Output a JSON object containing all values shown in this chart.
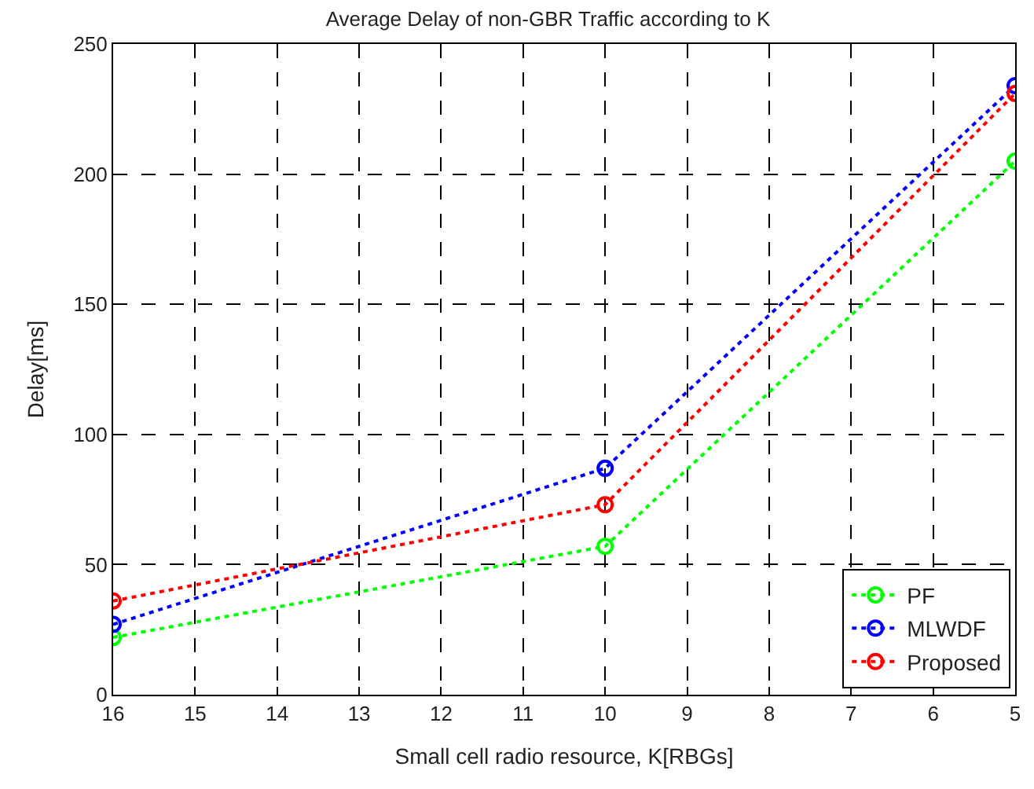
{
  "chart_data": {
    "type": "line",
    "title": "Average Delay of non-GBR Traffic according to K",
    "xlabel": "Small cell radio resource, K[RBGs]",
    "ylabel": "Delay[ms]",
    "x": [
      16,
      10,
      5
    ],
    "series": [
      {
        "name": "PF",
        "color": "#00ff00",
        "values": [
          22,
          57,
          205
        ]
      },
      {
        "name": "MLWDF",
        "color": "#0000ff",
        "values": [
          27,
          87,
          234
        ]
      },
      {
        "name": "Proposed",
        "color": "#ff0000",
        "values": [
          36,
          73,
          231
        ]
      }
    ],
    "xlim": [
      16,
      5
    ],
    "xticks": [
      16,
      15,
      14,
      13,
      12,
      11,
      10,
      9,
      8,
      7,
      6,
      5
    ],
    "ylim": [
      0,
      250
    ],
    "yticks": [
      0,
      50,
      100,
      150,
      200,
      250
    ],
    "grid": true,
    "legend": "bottom right",
    "marker": "circle",
    "line_style": "dotted"
  }
}
